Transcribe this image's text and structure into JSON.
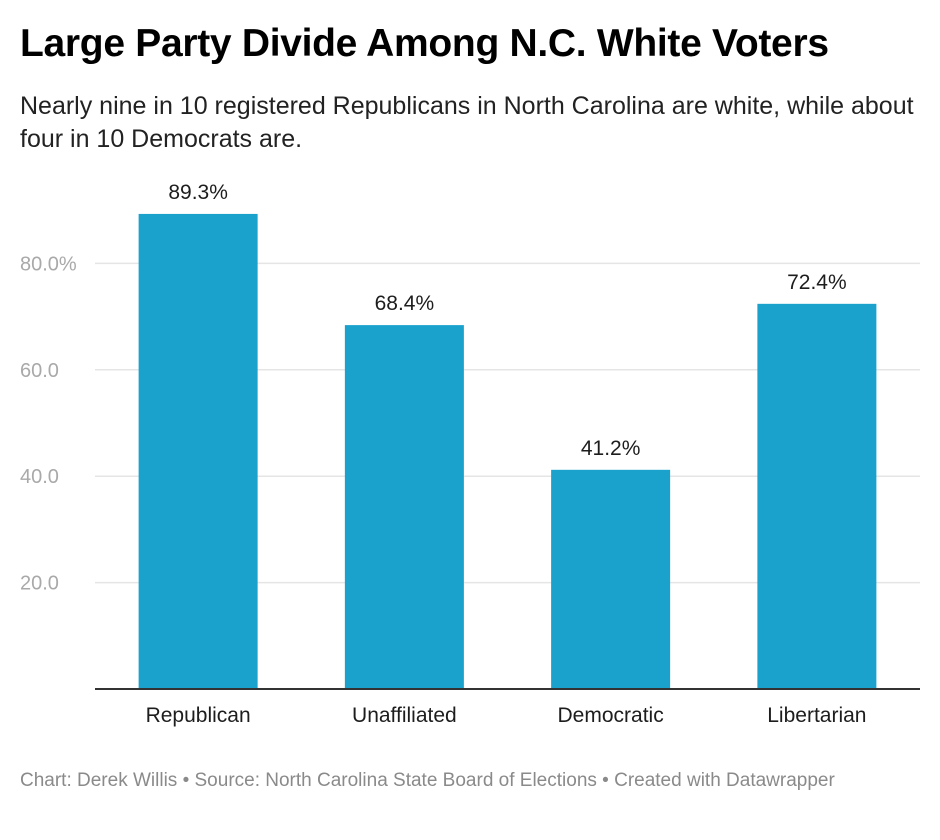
{
  "title": "Large Party Divide Among N.C. White Voters",
  "subtitle": "Nearly nine in 10 registered Republicans in North Carolina are white, while about four in 10 Democrats are.",
  "footer": "Chart: Derek Willis • Source: North Carolina State Board of Elections • Created with Datawrapper",
  "chart_data": {
    "type": "bar",
    "title": "Large Party Divide Among N.C. White Voters",
    "subtitle": "Nearly nine in 10 registered Republicans in North Carolina are white, while about four in 10 Democrats are.",
    "categories": [
      "Republican",
      "Unaffiliated",
      "Democratic",
      "Libertarian"
    ],
    "values": [
      89.3,
      68.4,
      41.2,
      72.4
    ],
    "data_labels": [
      "89.3%",
      "68.4%",
      "41.2%",
      "72.4%"
    ],
    "yticks": [
      20,
      40,
      60,
      80
    ],
    "ytick_labels": [
      "20.0",
      "40.0",
      "60.0",
      "80.0%"
    ],
    "ylim": [
      0,
      100
    ],
    "xlabel": "",
    "ylabel": "",
    "grid": true,
    "bar_color": "#1aa1cc",
    "grid_color": "#e5e5e5",
    "tick_label_color": "#a9a9a9"
  }
}
